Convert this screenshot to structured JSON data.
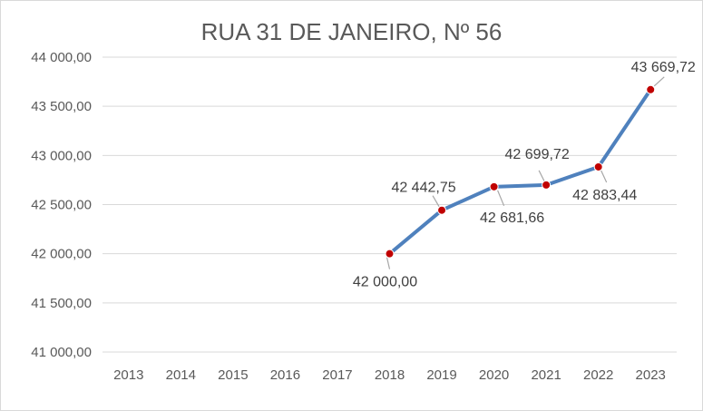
{
  "chart_data": {
    "type": "line",
    "title": "RUA 31 DE JANEIRO, Nº 56",
    "xlabel": "",
    "ylabel": "",
    "categories": [
      "2013",
      "2014",
      "2015",
      "2016",
      "2017",
      "2018",
      "2019",
      "2020",
      "2021",
      "2022",
      "2023"
    ],
    "series": [
      {
        "values": [
          null,
          null,
          null,
          null,
          null,
          42000.0,
          42442.75,
          42681.66,
          42699.72,
          42883.44,
          43669.72
        ],
        "labels": [
          null,
          null,
          null,
          null,
          null,
          "42 000,00",
          "42 442,75",
          "42 681,66",
          "42 699,72",
          "42 883,44",
          "43 669,72"
        ],
        "color": "#4f81bd",
        "marker_color": "#c00000"
      }
    ],
    "ylim": [
      41000,
      44000
    ],
    "yticks": [
      41000,
      41500,
      42000,
      42500,
      43000,
      43500,
      44000
    ],
    "ytick_labels": [
      "41 000,00",
      "41 500,00",
      "42 000,00",
      "42 500,00",
      "43 000,00",
      "43 500,00",
      "44 000,00"
    ],
    "grid": true,
    "legend": "none"
  }
}
